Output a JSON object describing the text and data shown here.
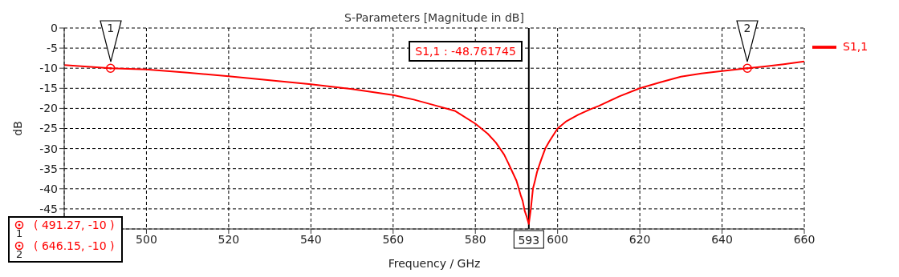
{
  "chart_data": {
    "type": "line",
    "title": "S-Parameters [Magnitude in dB]",
    "xlabel": "Frequency / GHz",
    "ylabel": "dB",
    "x": [
      480,
      491.27,
      500,
      510,
      520,
      530,
      540,
      550,
      560,
      565,
      570,
      575,
      580,
      583,
      585,
      587,
      588,
      589,
      590,
      591,
      591.5,
      592,
      592.5,
      593,
      593.5,
      594,
      594.5,
      595,
      596,
      597,
      598,
      600,
      602,
      605,
      608,
      610,
      615,
      620,
      625,
      630,
      635,
      640,
      646.15,
      650,
      655,
      660
    ],
    "series": [
      {
        "name": "S1,1",
        "color": "#ff0000",
        "values": [
          -9.2,
          -10,
          -10.3,
          -11.1,
          -12,
          -13,
          -14,
          -15.2,
          -16.7,
          -17.8,
          -19.2,
          -20.6,
          -23.8,
          -26.3,
          -28.5,
          -31.5,
          -33.6,
          -35.8,
          -38,
          -41.5,
          -43,
          -45.5,
          -47,
          -48.761745,
          -45,
          -40,
          -38,
          -35.8,
          -32.8,
          -30,
          -28.2,
          -25,
          -23.3,
          -21.6,
          -20.2,
          -19.4,
          -17,
          -15,
          -13.5,
          -12.1,
          -11.3,
          -10.7,
          -10,
          -9.6,
          -9,
          -8.3
        ]
      },
      {
        "type": "scatter",
        "color": "#ff0000",
        "marker": "circle",
        "x": [
          491.27,
          646.15
        ],
        "values": [
          -10,
          -10
        ]
      }
    ],
    "xlim": [
      480,
      660
    ],
    "xticks": [
      500,
      520,
      540,
      560,
      580,
      600,
      620,
      640,
      660
    ],
    "ylim": [
      -50,
      0
    ],
    "yticks": [
      0,
      -5,
      -10,
      -15,
      -20,
      -25,
      -30,
      -35,
      -40,
      -45
    ],
    "grid": true,
    "legend": "top right",
    "marker": "none",
    "line_style": "solid",
    "ref_lines": [
      {
        "axis": "x",
        "value": 593,
        "label": "593",
        "color": "#000000",
        "line_style": "solid"
      }
    ],
    "annotations": [
      "1",
      "2",
      "S1,1 : -48.761745",
      "( 491.27, -10 )",
      "( 646.15, -10 )"
    ]
  }
}
